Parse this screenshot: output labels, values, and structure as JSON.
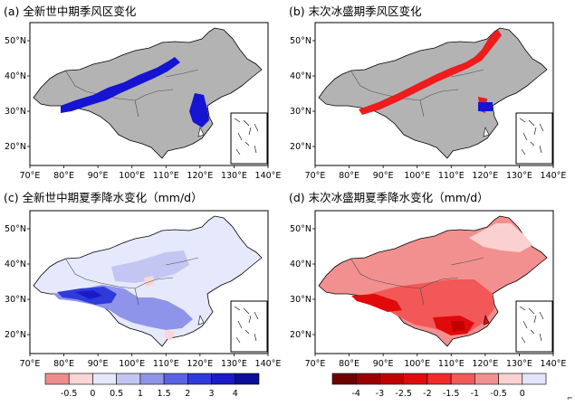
{
  "panels": [
    {
      "id": "a",
      "title": "(a) 全新世中期季风区变化",
      "lon_ticks": [
        "70°E",
        "80°E",
        "90°E",
        "100°E",
        "110°E",
        "120°E",
        "130°E",
        "140°E"
      ],
      "lat_ticks": [
        "50°N",
        "40°N",
        "30°N",
        "20°N"
      ],
      "fill_color": "#b3b3b3",
      "highlight_color": "#1414d2"
    },
    {
      "id": "b",
      "title": "(b) 末次冰盛期季风区变化",
      "lon_ticks": [
        "70°E",
        "80°E",
        "90°E",
        "100°E",
        "110°E",
        "120°E",
        "130°E",
        "140°E"
      ],
      "lat_ticks": [
        "50°N",
        "40°N",
        "30°N",
        "20°N"
      ],
      "fill_color": "#b3b3b3",
      "highlight_color": "#ee1c1c",
      "secondary_color": "#1414d2"
    },
    {
      "id": "c",
      "title": "(c) 全新世中期夏季降水变化（mm/d）",
      "lon_ticks": [
        "70°E",
        "80°E",
        "90°E",
        "100°E",
        "110°E",
        "120°E",
        "130°E",
        "140°E"
      ],
      "lat_ticks": [
        "50°N",
        "40°N",
        "30°N",
        "20°N"
      ]
    },
    {
      "id": "d",
      "title": "(d) 末次冰盛期夏季降水变化（mm/d）",
      "lon_ticks": [
        "70°E",
        "80°E",
        "90°E",
        "100°E",
        "110°E",
        "120°E",
        "130°E",
        "140°E"
      ],
      "lat_ticks": [
        "50°N",
        "40°N",
        "30°N",
        "20°N"
      ]
    }
  ],
  "colorbar_left": {
    "labels": [
      "-0.5",
      "0",
      "0.5",
      "1",
      "1.5",
      "2",
      "3",
      "4"
    ],
    "colors": [
      "#f08c8c",
      "#fbd6d6",
      "#e6e8fb",
      "#c3c6f2",
      "#8e94ea",
      "#5a63e3",
      "#2f3adb",
      "#1a1ac8",
      "#0d0d98"
    ]
  },
  "colorbar_right": {
    "labels": [
      "-4",
      "-3",
      "-2.5",
      "-2",
      "-1.5",
      "-1",
      "-0.5",
      "0"
    ],
    "colors": [
      "#6e0000",
      "#9a0000",
      "#c20000",
      "#e00a0a",
      "#f22a2a",
      "#f25858",
      "#f29090",
      "#fbd0d0",
      "#e2e4fb"
    ]
  },
  "colors": {
    "border": "#000000",
    "map_outline": "#4d4d4d",
    "land_outline": "#000000"
  }
}
